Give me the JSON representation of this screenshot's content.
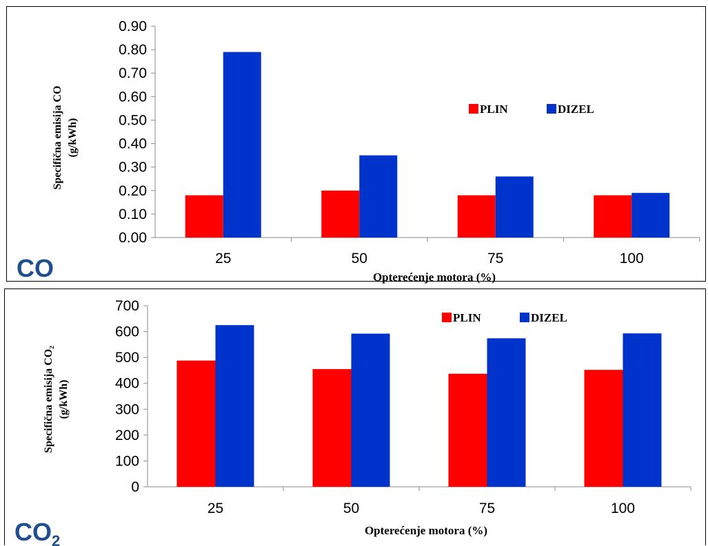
{
  "colors": {
    "plin": "#ff0000",
    "dizel": "#0033cc",
    "label_blue": "#1f4f8f"
  },
  "chart_data": [
    {
      "type": "bar",
      "corner_label": "CO",
      "categories": [
        "25",
        "50",
        "75",
        "100"
      ],
      "series": [
        {
          "name": "PLIN",
          "values": [
            0.18,
            0.2,
            0.18,
            0.18
          ]
        },
        {
          "name": "DIZEL",
          "values": [
            0.79,
            0.35,
            0.26,
            0.19
          ]
        }
      ],
      "ylim": [
        0,
        0.9
      ],
      "yticks": [
        "0.00",
        "0.10",
        "0.20",
        "0.30",
        "0.40",
        "0.50",
        "0.60",
        "0.70",
        "0.80",
        "0.90"
      ],
      "xlabel": "Opterećenje motora (%)",
      "ylabel_line1": "Specifična emisija CO",
      "ylabel_line2": "(g/kWh)",
      "legend_position": "center-right"
    },
    {
      "type": "bar",
      "corner_label": "CO",
      "corner_sub": "2",
      "categories": [
        "25",
        "50",
        "75",
        "100"
      ],
      "series": [
        {
          "name": "PLIN",
          "values": [
            488,
            455,
            437,
            452
          ]
        },
        {
          "name": "DIZEL",
          "values": [
            625,
            592,
            574,
            593
          ]
        }
      ],
      "ylim": [
        0,
        700
      ],
      "yticks": [
        "0",
        "100",
        "200",
        "300",
        "400",
        "500",
        "600",
        "700"
      ],
      "xlabel": "Opterećenje motora (%)",
      "ylabel_line1": "Specifična emisija CO₂",
      "ylabel_line2": "(g/kWh)",
      "legend_position": "top-right"
    }
  ]
}
